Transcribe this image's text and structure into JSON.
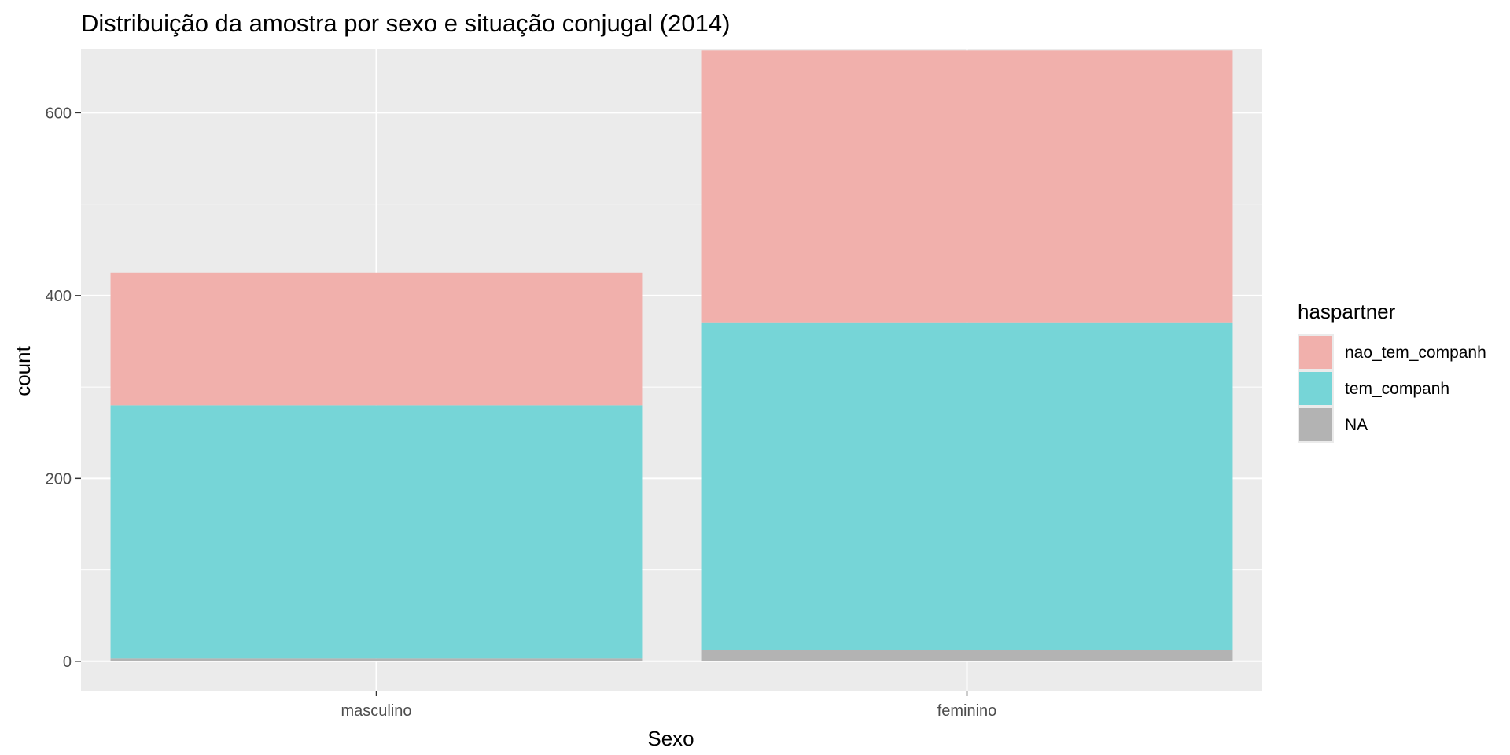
{
  "chart_data": {
    "type": "bar",
    "stacked": true,
    "title": "Distribuição da amostra por sexo e situação conjugal (2014)",
    "xlabel": "Sexo",
    "ylabel": "count",
    "categories": [
      "masculino",
      "feminino"
    ],
    "series": [
      {
        "name": "NA",
        "color": "#b3b3b3",
        "values": [
          3,
          12
        ]
      },
      {
        "name": "tem_companh",
        "color": "#76d5d7",
        "values": [
          277,
          358
        ]
      },
      {
        "name": "nao_tem_companh",
        "color": "#f1b0ac",
        "values": [
          145,
          298
        ]
      }
    ],
    "ylim": [
      -32,
      670
    ],
    "yticks": [
      0,
      200,
      400,
      600
    ],
    "grid": true,
    "legend": {
      "title": "haspartner",
      "position": "right",
      "entries": [
        {
          "label": "nao_tem_companh",
          "color": "#f1b0ac"
        },
        {
          "label": "tem_companh",
          "color": "#76d5d7"
        },
        {
          "label": "NA",
          "color": "#b3b3b3"
        }
      ]
    },
    "panel_background": "#ebebeb"
  }
}
